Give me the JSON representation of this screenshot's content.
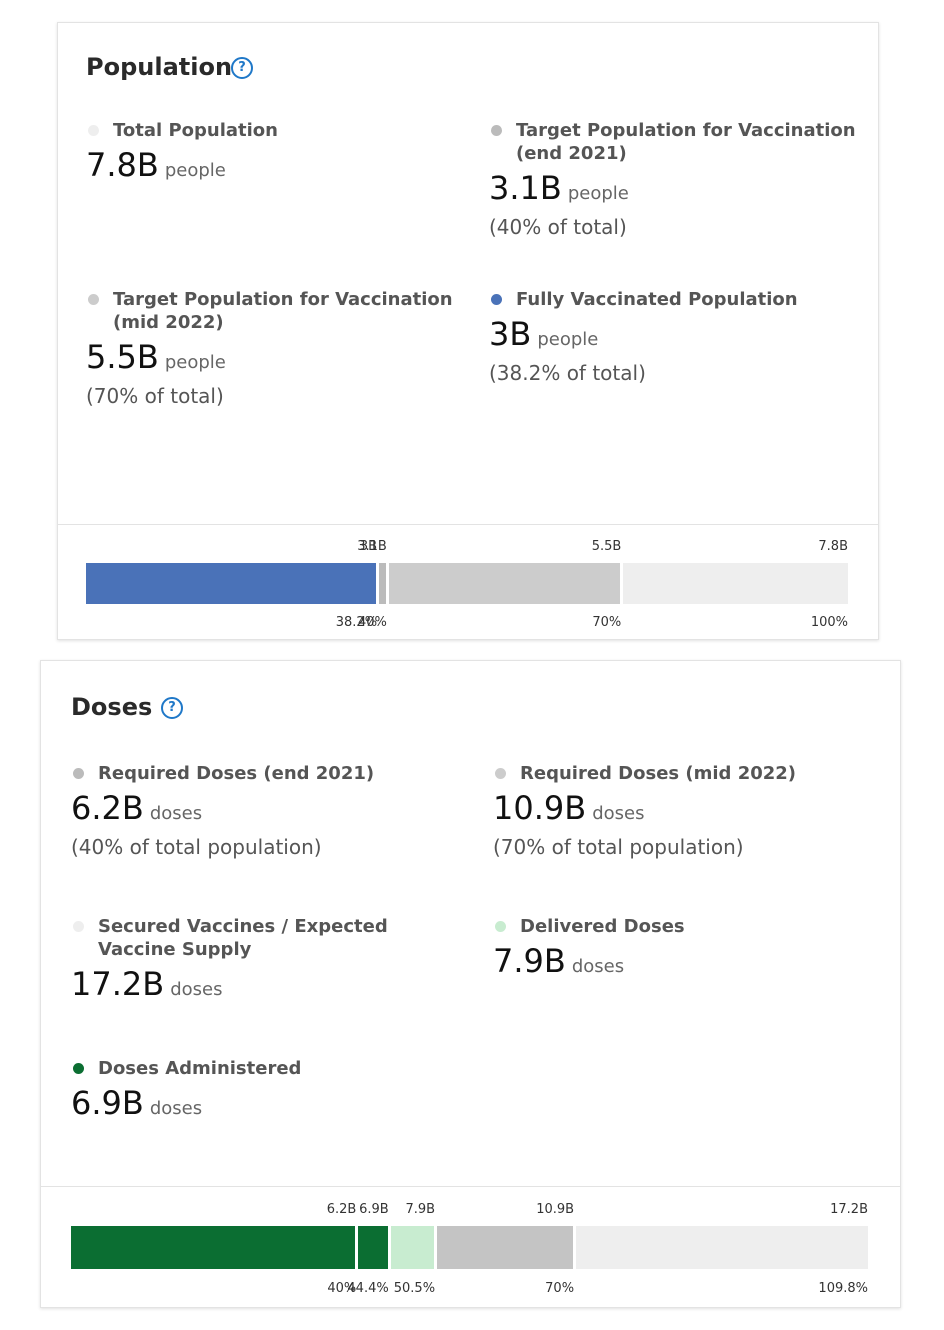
{
  "population": {
    "title": "Population",
    "help_icon": "question-circle-icon",
    "stats": [
      {
        "label": "Total Population",
        "value": "7.8B",
        "unit": "people",
        "note": "",
        "color": "#eeeeee"
      },
      {
        "label": "Target Population for Vaccination (end 2021)",
        "value": "3.1B",
        "unit": "people",
        "note": "(40% of total)",
        "color": "#bbbbbb"
      },
      {
        "label": "Target Population for Vaccination (mid 2022)",
        "value": "5.5B",
        "unit": "people",
        "note": "(70% of total)",
        "color": "#cccccc"
      },
      {
        "label": "Fully Vaccinated Population",
        "value": "3B",
        "unit": "people",
        "note": "(38.2% of total)",
        "color": "#4a72b8"
      }
    ],
    "chart_data": {
      "type": "bar",
      "total": 7.8,
      "segments": [
        {
          "value": 3.0,
          "label_top": "3B",
          "label_bottom": "38.2%",
          "color": "#4a72b8"
        },
        {
          "value": 3.1,
          "label_top": "3.1B",
          "label_bottom": "40%",
          "color": "#bbbbbb"
        },
        {
          "value": 5.5,
          "label_top": "5.5B",
          "label_bottom": "70%",
          "color": "#cccccc"
        },
        {
          "value": 7.8,
          "label_top": "7.8B",
          "label_bottom": "100%",
          "color": "#eeeeee"
        }
      ]
    }
  },
  "doses": {
    "title": "Doses",
    "help_icon": "question-circle-icon",
    "stats": [
      {
        "label": "Required Doses (end 2021)",
        "value": "6.2B",
        "unit": "doses",
        "note": "(40% of total population)",
        "color": "#bbbbbb"
      },
      {
        "label": "Required Doses (mid 2022)",
        "value": "10.9B",
        "unit": "doses",
        "note": "(70% of total population)",
        "color": "#cccccc"
      },
      {
        "label": "Secured Vaccines / Expected Vaccine Supply",
        "value": "17.2B",
        "unit": "doses",
        "note": "",
        "color": "#eeeeee"
      },
      {
        "label": "Delivered Doses",
        "value": "7.9B",
        "unit": "doses",
        "note": "",
        "color": "#c8ecd0"
      },
      {
        "label": "Doses Administered",
        "value": "6.9B",
        "unit": "doses",
        "note": "",
        "color": "#0b6e32"
      }
    ],
    "chart_data": {
      "type": "bar",
      "total": 17.2,
      "segments": [
        {
          "value": 6.2,
          "label_top": "6.2B",
          "label_bottom": "40%",
          "color": "#0b6e32"
        },
        {
          "value": 6.9,
          "label_top": "6.9B",
          "label_bottom": "44.4%",
          "color": "#0b6e32"
        },
        {
          "value": 7.9,
          "label_top": "7.9B",
          "label_bottom": "50.5%",
          "color": "#c8ecd0"
        },
        {
          "value": 10.9,
          "label_top": "10.9B",
          "label_bottom": "70%",
          "color": "#c4c4c4"
        },
        {
          "value": 17.2,
          "label_top": "17.2B",
          "label_bottom": "109.8%",
          "color": "#eeeeee"
        }
      ]
    }
  }
}
